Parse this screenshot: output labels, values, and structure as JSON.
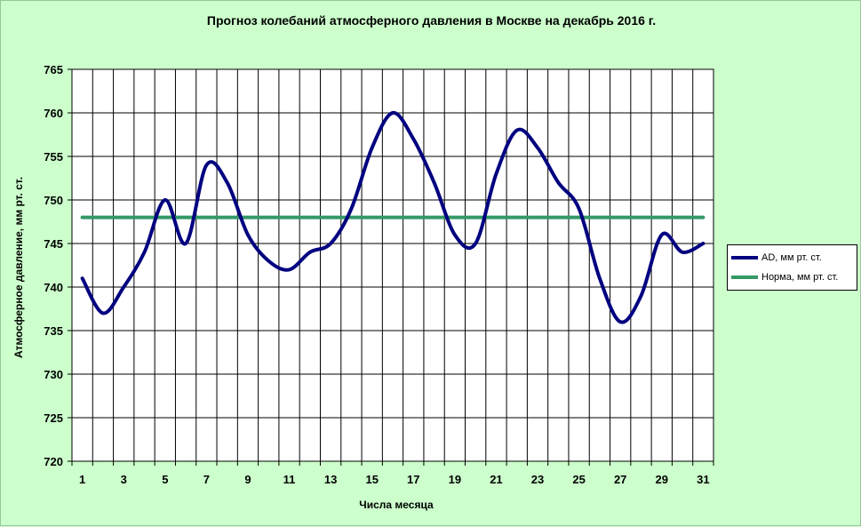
{
  "chart_data": {
    "type": "line",
    "title": "Прогноз колебаний атмосферного давления в Москве на декабрь 2016 г.",
    "xlabel": "Числа месяца",
    "ylabel": "Атмосферное давление,  мм рт. ст.",
    "x": [
      1,
      2,
      3,
      4,
      5,
      6,
      7,
      8,
      9,
      10,
      11,
      12,
      13,
      14,
      15,
      16,
      17,
      18,
      19,
      20,
      21,
      22,
      23,
      24,
      25,
      26,
      27,
      28,
      29,
      30,
      31
    ],
    "x_tick_labels": [
      "1",
      "3",
      "5",
      "7",
      "9",
      "11",
      "13",
      "15",
      "17",
      "19",
      "21",
      "23",
      "25",
      "27",
      "29",
      "31"
    ],
    "y_ticks": [
      720,
      725,
      730,
      735,
      740,
      745,
      750,
      755,
      760,
      765
    ],
    "ylim": [
      720,
      765
    ],
    "xlim": [
      0.5,
      31.5
    ],
    "grid": true,
    "legend_position": "right",
    "series": [
      {
        "name": "AD, мм рт. ст.",
        "color": "#000080",
        "values": [
          741,
          737,
          740,
          744,
          750,
          745,
          754,
          752,
          746,
          743,
          742,
          744,
          745,
          749,
          756,
          760,
          757,
          752,
          746,
          745,
          753,
          758,
          756,
          752,
          749,
          741,
          736,
          739,
          746,
          744,
          745
        ]
      },
      {
        "name": "Норма, мм рт. ст.",
        "color": "#339966",
        "values": [
          748,
          748,
          748,
          748,
          748,
          748,
          748,
          748,
          748,
          748,
          748,
          748,
          748,
          748,
          748,
          748,
          748,
          748,
          748,
          748,
          748,
          748,
          748,
          748,
          748,
          748,
          748,
          748,
          748,
          748,
          748
        ]
      }
    ]
  }
}
